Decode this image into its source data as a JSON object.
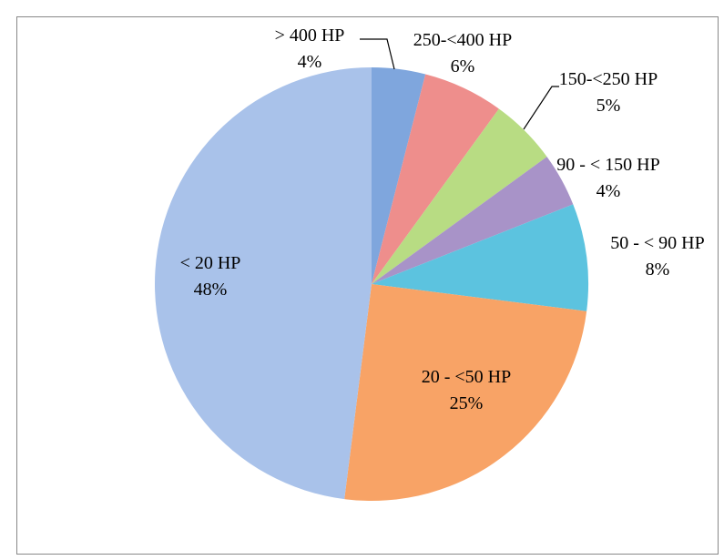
{
  "chart_data": {
    "type": "pie",
    "categories": [
      "> 400 HP",
      "250-<400 HP",
      "150-<250 HP",
      "90 - < 150 HP",
      "50 - < 90 HP",
      "20 - <50 HP",
      "< 20 HP"
    ],
    "values": [
      4,
      6,
      5,
      4,
      8,
      25,
      48
    ],
    "value_labels": [
      "4%",
      "6%",
      "5%",
      "4%",
      "8%",
      "25%",
      "48%"
    ],
    "colors": [
      "#7fa6dd",
      "#ee8e8c",
      "#b8dc83",
      "#a893c8",
      "#5cc3df",
      "#f8a366",
      "#a9c2ea"
    ]
  }
}
